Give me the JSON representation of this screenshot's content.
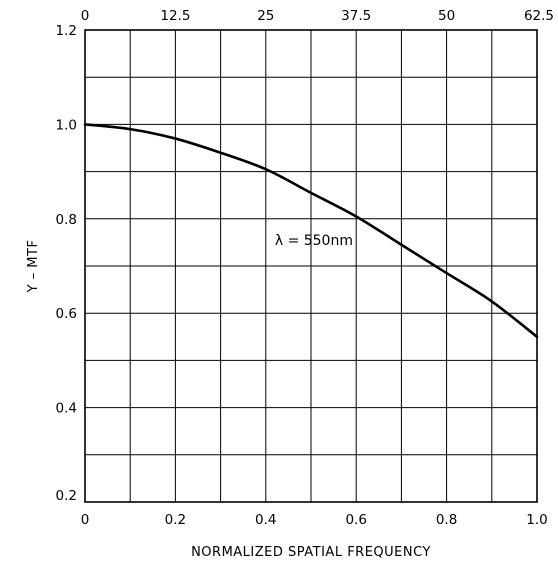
{
  "chart_data": {
    "type": "line",
    "title": "",
    "xlabel": "NORMALIZED SPATIAL FREQUENCY",
    "ylabel": "Y – MTF",
    "xlim": [
      0,
      1.0
    ],
    "ylim": [
      0.2,
      1.2
    ],
    "x_ticks": [
      "0",
      "0.2",
      "0.4",
      "0.6",
      "0.8",
      "1.0"
    ],
    "y_ticks": [
      "0.2",
      "0.4",
      "0.6",
      "0.8",
      "1.0",
      "1.2"
    ],
    "top_ticks": [
      "0",
      "12.5",
      "25",
      "37.5",
      "50",
      "62.5"
    ],
    "grid": true,
    "grid_x_step": 0.1,
    "grid_y_step": 0.1,
    "annotation": {
      "text": "λ = 550nm",
      "x": 0.42,
      "y": 0.755
    },
    "series": [
      {
        "x": [
          0,
          0.1,
          0.2,
          0.3,
          0.4,
          0.5,
          0.6,
          0.7,
          0.8,
          0.9,
          1.0
        ],
        "values": [
          1.0,
          0.99,
          0.97,
          0.94,
          0.905,
          0.855,
          0.805,
          0.745,
          0.685,
          0.625,
          0.55
        ]
      }
    ]
  }
}
